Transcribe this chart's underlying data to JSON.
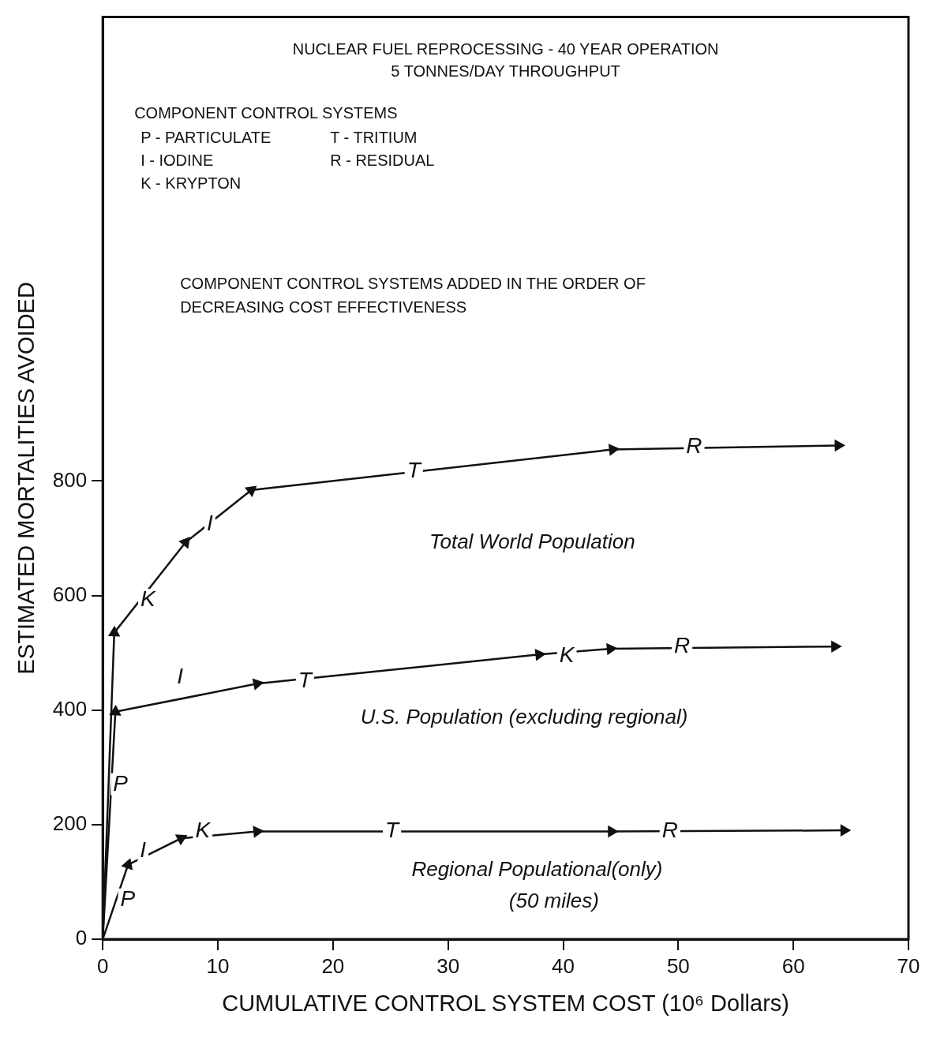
{
  "chart_data": {
    "type": "line",
    "title": "NUCLEAR FUEL REPROCESSING - 40 YEAR OPERATION",
    "subtitle": "5 TONNES/DAY   THROUGHPUT",
    "xlabel": "CUMULATIVE CONTROL SYSTEM COST (10⁶ Dollars)",
    "ylabel": "ESTIMATED MORTALITIES AVOIDED",
    "xlim": [
      0,
      70
    ],
    "xticks": [
      0,
      10,
      20,
      30,
      40,
      50,
      60,
      70
    ],
    "ylim": [
      0,
      1610
    ],
    "yticks": [
      0,
      200,
      400,
      600,
      800
    ],
    "grid": false,
    "legend": false,
    "marker": "triangle",
    "line_style": "solid",
    "series": [
      {
        "color": "#111111",
        "x": [
          0,
          1,
          7.2,
          12.9,
          44.3,
          63.9
        ],
        "values": [
          0,
          535,
          693,
          784,
          855,
          862
        ]
      },
      {
        "color": "#111111",
        "x": [
          0,
          1.1,
          13.4,
          37.9,
          44.1,
          63.6
        ],
        "values": [
          0,
          397,
          446,
          497,
          507,
          511
        ]
      },
      {
        "color": "#111111",
        "x": [
          0,
          2.2,
          6.8,
          13.4,
          44.2,
          64.4
        ],
        "values": [
          0,
          130,
          176,
          188,
          188,
          190
        ]
      }
    ],
    "annotations": [
      "COMPONENT CONTROL SYSTEMS",
      "P - PARTICULATE",
      "T - TRITIUM",
      "I - IODINE",
      "R - RESIDUAL",
      "K - KRYPTON",
      "COMPONENT CONTROL SYSTEMS ADDED IN THE ORDER OF DECREASING COST EFFECTIVENESS",
      "Total World Population",
      "U.S. Population (excluding regional)",
      "Regional Populational(only)",
      "(50 miles)",
      "P",
      "K",
      "I",
      "T",
      "R",
      "I",
      "T",
      "K",
      "R",
      "P",
      "I",
      "K",
      "T",
      "R"
    ]
  }
}
